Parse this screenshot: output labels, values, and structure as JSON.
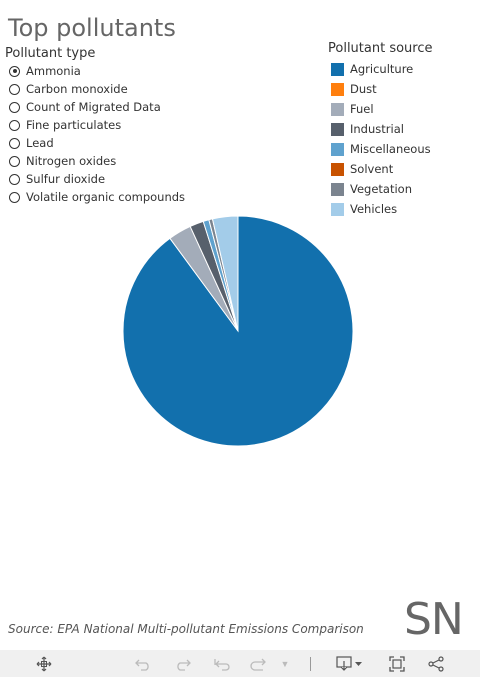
{
  "title": "Top pollutants",
  "filter": {
    "heading": "Pollutant type",
    "selected": "Ammonia",
    "options": [
      "Ammonia",
      "Carbon monoxide",
      "Count of Migrated Data",
      "Fine particulates",
      "Lead",
      "Nitrogen oxides",
      "Sulfur dioxide",
      "Volatile organic compounds"
    ]
  },
  "chart_data": {
    "type": "pie",
    "legend_title": "Pollutant source",
    "legend_position": "top-right",
    "labels": [
      "Agriculture",
      "Dust",
      "Fuel",
      "Industrial",
      "Miscellaneous",
      "Solvent",
      "Vegetation",
      "Vehicles"
    ],
    "values": [
      88.3,
      0,
      3.2,
      1.9,
      0.8,
      0,
      0.5,
      3.5
    ],
    "colors": [
      "#1270ad",
      "#ff7f0e",
      "#a3acb9",
      "#57606c",
      "#5fa2ce",
      "#c85200",
      "#7b848f",
      "#a3cce9"
    ]
  },
  "source": "Source: EPA National Multi-pollutant Emissions Comparison",
  "logo_text": "SN",
  "toolbar": {
    "icons": [
      "move-icon",
      "undo-icon",
      "redo-icon",
      "revert-icon",
      "refresh-icon",
      "dropdown-icon",
      "download-icon",
      "fullscreen-icon",
      "share-icon"
    ]
  }
}
